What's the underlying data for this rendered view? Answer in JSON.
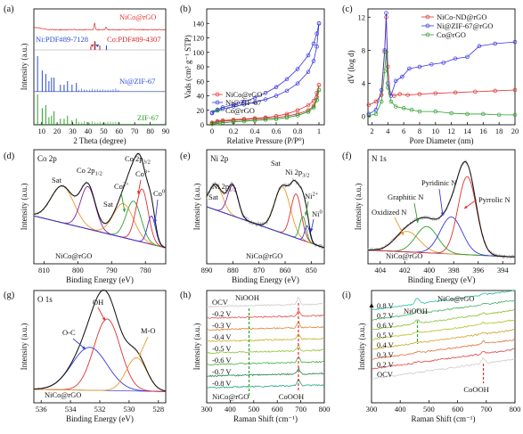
{
  "chart_data": [
    {
      "id": "a",
      "type": "line",
      "panel_label": "(a)",
      "xlabel": "2 Theta (degree)",
      "ylabel": "Intensity (a.u.)",
      "xlim": [
        5,
        90
      ],
      "xticks": [
        10,
        20,
        30,
        40,
        50,
        60,
        70,
        80,
        90
      ],
      "ref_labels": [
        {
          "text": "Ni:PDF#89-7128",
          "color": "#2a4fd6"
        },
        {
          "text": "Co:PDF#89-4307",
          "color": "#d62a2a"
        }
      ],
      "series": [
        {
          "name": "NiCo@rGO",
          "color": "#e03030",
          "peaks": [
            [
              44.2,
              0.9
            ],
            [
              51.5,
              0.35
            ]
          ]
        },
        {
          "name": "Ni@ZIF-67",
          "color": "#2a4fd6",
          "peaks": [
            [
              7.4,
              1.0
            ],
            [
              10.4,
              0.6
            ],
            [
              12.7,
              0.5
            ],
            [
              14.7,
              0.3
            ],
            [
              16.4,
              0.4
            ],
            [
              18.0,
              0.4
            ],
            [
              22.1,
              0.2
            ],
            [
              24.5,
              0.2
            ],
            [
              26.7,
              0.3
            ],
            [
              29.6,
              0.2
            ],
            [
              32.4,
              0.25
            ]
          ]
        },
        {
          "name": "ZIF-67",
          "color": "#2ea02e",
          "peaks": [
            [
              7.4,
              1.0
            ],
            [
              10.4,
              0.55
            ],
            [
              12.7,
              0.65
            ],
            [
              14.7,
              0.25
            ],
            [
              16.4,
              0.3
            ],
            [
              18.0,
              0.45
            ],
            [
              22.1,
              0.2
            ],
            [
              24.5,
              0.2
            ],
            [
              26.7,
              0.3
            ],
            [
              29.6,
              0.15
            ],
            [
              32.4,
              0.2
            ]
          ]
        }
      ]
    },
    {
      "id": "b",
      "type": "line",
      "panel_label": "(b)",
      "xlabel": "Relative Pressure (P/P⁰)",
      "ylabel": "Vads (cm³ g⁻¹ STP)",
      "xlim": [
        -0.05,
        1.05
      ],
      "ylim": [
        0,
        160
      ],
      "xticks": [
        0.0,
        0.2,
        0.4,
        0.6,
        0.8,
        1.0
      ],
      "yticks": [
        0,
        20,
        40,
        60,
        80,
        100,
        120,
        140
      ],
      "legend_position": "bottom-left",
      "series": [
        {
          "name": "NiCo@rGO",
          "color": "#e03030",
          "x": [
            0.0,
            0.05,
            0.1,
            0.2,
            0.3,
            0.4,
            0.5,
            0.6,
            0.7,
            0.8,
            0.9,
            0.95,
            0.98,
            1.0
          ],
          "adsorption": [
            2,
            4,
            5,
            6,
            7,
            8,
            9,
            10,
            12,
            15,
            20,
            26,
            38,
            55
          ],
          "desorption": [
            3,
            5,
            6,
            7,
            8,
            9,
            10,
            12,
            15,
            20,
            27,
            33,
            44,
            55
          ]
        },
        {
          "name": "Ni@ZIF-67",
          "color": "#3535e0",
          "x": [
            0.0,
            0.05,
            0.1,
            0.2,
            0.3,
            0.4,
            0.5,
            0.6,
            0.7,
            0.8,
            0.9,
            0.95,
            0.98,
            1.0
          ],
          "adsorption": [
            16,
            20,
            22,
            25,
            28,
            31,
            35,
            40,
            47,
            57,
            73,
            88,
            108,
            140
          ],
          "desorption": [
            17,
            21,
            24,
            28,
            32,
            37,
            44,
            52,
            63,
            77,
            96,
            112,
            126,
            140
          ]
        },
        {
          "name": "Co@rGO",
          "color": "#2ea02e",
          "x": [
            0.0,
            0.05,
            0.1,
            0.2,
            0.3,
            0.4,
            0.5,
            0.6,
            0.7,
            0.8,
            0.9,
            0.95,
            0.98,
            1.0
          ],
          "adsorption": [
            1,
            2,
            3,
            4,
            5,
            6,
            7,
            8,
            10,
            13,
            18,
            24,
            34,
            48
          ],
          "desorption": [
            1,
            2,
            3,
            4,
            5,
            6,
            7,
            8,
            10,
            13,
            18,
            24,
            34,
            48
          ]
        }
      ]
    },
    {
      "id": "c",
      "type": "line",
      "panel_label": "(c)",
      "xlabel": "Pore Diameter (nm)",
      "ylabel": "dV (log d)",
      "xlim": [
        1.5,
        20
      ],
      "ylim": [
        -1,
        13
      ],
      "xticks": [
        2,
        4,
        6,
        8,
        10,
        12,
        14,
        16,
        18,
        20
      ],
      "yticks": [
        0,
        4,
        8,
        12
      ],
      "legend_position": "top-right",
      "series": [
        {
          "name": "NiCo-ND@rGO",
          "color": "#e03030",
          "x": [
            1.6,
            2.5,
            3.2,
            3.6,
            3.8,
            4.0,
            4.3,
            4.8,
            5.5,
            6.5,
            8,
            10,
            12.5,
            15,
            17.5,
            20
          ],
          "y": [
            1.4,
            1.8,
            2.6,
            7.8,
            12.0,
            6.0,
            2.8,
            2.5,
            2.7,
            2.6,
            2.7,
            2.8,
            2.9,
            3.0,
            3.1,
            3.2
          ]
        },
        {
          "name": "Ni@ZIF-67@rGO",
          "color": "#3535e0",
          "x": [
            1.6,
            2.5,
            3.2,
            3.6,
            3.8,
            4.0,
            4.4,
            5.0,
            5.8,
            6.7,
            8,
            9.5,
            11,
            12.5,
            14,
            15.5,
            17.5,
            20
          ],
          "y": [
            0.3,
            0.8,
            3.2,
            8.0,
            12.5,
            4.0,
            2.5,
            4.3,
            4.8,
            5.8,
            6.0,
            6.3,
            6.5,
            7.0,
            7.2,
            8.5,
            8.8,
            9.0
          ]
        },
        {
          "name": "Co@rGO",
          "color": "#2ea02e",
          "x": [
            1.6,
            2.5,
            3.2,
            3.6,
            3.8,
            4.0,
            4.4,
            5.0,
            6,
            7,
            8,
            10,
            12,
            14,
            16,
            18,
            20
          ],
          "y": [
            0.1,
            0.3,
            1.8,
            5.5,
            7.8,
            3.5,
            1.8,
            1.2,
            1.0,
            0.8,
            0.6,
            0.6,
            0.4,
            0.3,
            0.3,
            0.2,
            0.2
          ]
        }
      ]
    },
    {
      "id": "d",
      "type": "line",
      "panel_label": "(d)",
      "element": "Co 2p",
      "sample": "NiCo@rGO",
      "xlabel": "Binding Energy (eV)",
      "ylabel": "Intensity (a.u.)",
      "xlim": [
        813,
        774
      ],
      "xticks": [
        810,
        800,
        790,
        780
      ],
      "components": [
        {
          "label": "Sat",
          "center": 804.5,
          "height": 0.52,
          "width": 3.4,
          "color": "#e8962e"
        },
        {
          "label": "Co 2p1/2",
          "center": 797.0,
          "height": 0.6,
          "width": 2.2,
          "color": "#8a1fa0"
        },
        {
          "label": "Sat",
          "center": 786.5,
          "height": 0.48,
          "width": 3.0,
          "color": "#e8962e"
        },
        {
          "label": "Co2+",
          "center": 783.5,
          "height": 0.55,
          "width": 2.2,
          "color": "#2ea02e"
        },
        {
          "label": "Co3+",
          "center": 781.0,
          "height": 0.75,
          "width": 1.8,
          "color": "#e03030"
        },
        {
          "label": "Co0",
          "center": 778.2,
          "height": 0.4,
          "width": 1.2,
          "color": "#3535e0"
        }
      ],
      "labels": {
        "sat1": "Sat",
        "co12": "Co 2p",
        "co12_sub": "1/2",
        "co32": "Co 2p",
        "co32_sub": "3/2",
        "sat2": "Sat",
        "co2": "Co",
        "co2_sup": "2+",
        "co3": "Co",
        "co3_sup": "3+",
        "co0": "Co",
        "co0_sup": "0"
      }
    },
    {
      "id": "e",
      "type": "line",
      "panel_label": "(e)",
      "element": "Ni 2p",
      "sample": "NiCo@rGO",
      "xlabel": "Binding Energy (eV)",
      "ylabel": "Intensity (a.u.)",
      "xlim": [
        890,
        845
      ],
      "xticks": [
        890,
        880,
        870,
        860,
        850
      ],
      "components": [
        {
          "label": "Sat",
          "center": 886.5,
          "height": 0.32,
          "width": 2.6,
          "color": "#e8962e"
        },
        {
          "label": "Ni 2p1/2",
          "center": 880.0,
          "height": 0.38,
          "width": 2.0,
          "color": "#8a1fa0"
        },
        {
          "label": "Sat",
          "center": 861.0,
          "height": 0.58,
          "width": 3.0,
          "color": "#e8962e"
        },
        {
          "label": "Ni 2p3/2",
          "center": 855.8,
          "height": 0.55,
          "width": 2.0,
          "color": "#e03030"
        },
        {
          "label": "Ni2+",
          "center": 853.2,
          "height": 0.3,
          "width": 1.2,
          "color": "#2ea02e"
        },
        {
          "label": "Ni0",
          "center": 851.5,
          "height": 0.2,
          "width": 1.0,
          "color": "#3535e0"
        }
      ],
      "labels": {
        "sat1": "Sat",
        "ni12": "Ni 2p",
        "ni12_sub": "1/2",
        "sat2": "Sat",
        "ni32": "Ni 2p",
        "ni32_sub": "3/2",
        "ni2": "Ni",
        "ni2_sup": "2+",
        "ni0": "Ni",
        "ni0_sup": "0"
      }
    },
    {
      "id": "f",
      "type": "line",
      "panel_label": "(f)",
      "element": "N 1s",
      "sample": "NiCo@rGO",
      "xlabel": "Binding Energy (eV)",
      "ylabel": "Intensity (a.u.)",
      "xlim": [
        405,
        393
      ],
      "xticks": [
        404,
        402,
        400,
        398,
        396,
        394
      ],
      "components": [
        {
          "label": "Oxidized N",
          "center": 401.8,
          "height": 0.25,
          "width": 1.0,
          "color": "#e8962e"
        },
        {
          "label": "Graphitic N",
          "center": 400.2,
          "height": 0.32,
          "width": 0.9,
          "color": "#2ea02e"
        },
        {
          "label": "Pyridinic N",
          "center": 398.2,
          "height": 0.45,
          "width": 0.9,
          "color": "#3535e0"
        },
        {
          "label": "Pyrrolic N",
          "center": 396.9,
          "height": 0.95,
          "width": 0.75,
          "color": "#e03030"
        }
      ],
      "labels": {
        "oxidized": "Oxidized N",
        "graphitic": "Graphitic N",
        "pyridinic": "Pyridinic N",
        "pyrrolic": "Pyrrolic N"
      }
    },
    {
      "id": "g",
      "type": "line",
      "panel_label": "(g)",
      "element": "O 1s",
      "sample": "NiCo@rGO",
      "xlabel": "Binding Energy (eV)",
      "ylabel": "Intensity (a.u.)",
      "xlim": [
        536.5,
        527.5
      ],
      "xticks": [
        536,
        534,
        532,
        530,
        528
      ],
      "components": [
        {
          "label": "O-C",
          "center": 532.7,
          "height": 0.45,
          "width": 1.2,
          "color": "#3535e0"
        },
        {
          "label": "OH",
          "center": 531.5,
          "height": 0.75,
          "width": 0.9,
          "color": "#e03030"
        },
        {
          "label": "M-O",
          "center": 529.5,
          "height": 0.35,
          "width": 0.7,
          "color": "#e8962e"
        }
      ],
      "labels": {
        "oc": "O-C",
        "oh": "OH",
        "mo": "M-O"
      }
    },
    {
      "id": "h",
      "type": "line",
      "panel_label": "(h)",
      "sample": "NiCo@rGO",
      "xlabel": "Raman Shift (cm⁻¹)",
      "ylabel": "Intensity (a.u.)",
      "xlim": [
        300,
        800
      ],
      "xticks": [
        300,
        400,
        500,
        600,
        700,
        800
      ],
      "potentials": [
        "OCV",
        "-0.2 V",
        "-0.3 V",
        "-0.4 V",
        "-0.5 V",
        "-0.6 V",
        "-0.7 V",
        "-0.8 V"
      ],
      "colors": [
        "#d0c8c8",
        "#e05050",
        "#e08030",
        "#c8b020",
        "#90c030",
        "#40b040",
        "#208040",
        "#20a080"
      ],
      "peak_labels": {
        "niooh": "NiOOH",
        "coooh": "CoOOH"
      },
      "niooh_shift": 480,
      "coooh_shift": 690
    },
    {
      "id": "i",
      "type": "line",
      "panel_label": "(i)",
      "sample": "NiCo@rGO",
      "xlabel": "Raman Shift (cm⁻¹)",
      "ylabel": "Intensity (a.u.)",
      "xlim": [
        300,
        800
      ],
      "xticks": [
        300,
        400,
        500,
        600,
        700,
        800
      ],
      "potentials": [
        "0.8 V",
        "0.7 V",
        "0.6 V",
        "0.5 V",
        "0.4 V",
        "0.3 V",
        "0.2 V",
        "OCV"
      ],
      "colors": [
        "#30c0a0",
        "#40b060",
        "#80c030",
        "#b0c020",
        "#d0a020",
        "#e07030",
        "#e04040",
        "#d0c8c8"
      ],
      "peak_labels": {
        "niooh": "NiOOH",
        "coooh": "CoOOH"
      },
      "niooh_shift": 460,
      "coooh_shift": 690
    }
  ]
}
